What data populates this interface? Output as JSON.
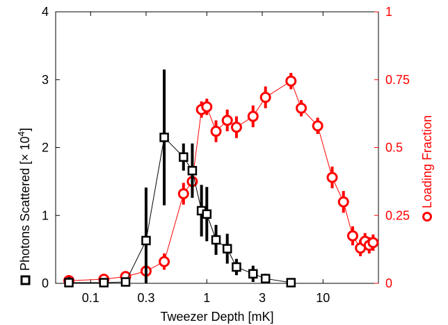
{
  "chart_data": {
    "type": "scatter",
    "xlabel": "Tweezer Depth [mK]",
    "x_scale": "log",
    "xlim": [
      0.05,
      30
    ],
    "x_ticks": [
      {
        "value": 0.1,
        "label": "0.1"
      },
      {
        "value": 0.3,
        "label": "0.3"
      },
      {
        "value": 1,
        "label": "1"
      },
      {
        "value": 3,
        "label": "3"
      },
      {
        "value": 10,
        "label": "10"
      }
    ],
    "left_axis": {
      "label_prefix": "Photons Scattered [",
      "label_mult": "× 10",
      "label_exp": "4",
      "label_suffix": "]",
      "ylim": [
        0,
        4
      ],
      "ticks": [
        {
          "value": 0,
          "label": "0"
        },
        {
          "value": 1,
          "label": "1"
        },
        {
          "value": 2,
          "label": "2"
        },
        {
          "value": 3,
          "label": "3"
        },
        {
          "value": 4,
          "label": "4"
        }
      ],
      "color": "#000000"
    },
    "right_axis": {
      "label": "Loading Fraction",
      "ylim": [
        0,
        1
      ],
      "ticks": [
        {
          "value": 0,
          "label": "0"
        },
        {
          "value": 0.25,
          "label": "0.25"
        },
        {
          "value": 0.5,
          "label": "0.5"
        },
        {
          "value": 0.75,
          "label": "0.75"
        },
        {
          "value": 1,
          "label": "1"
        }
      ],
      "color": "#ff0000"
    },
    "grid": false,
    "series": [
      {
        "axis": "left",
        "marker": "square",
        "color": "#000000",
        "points": [
          {
            "x": 0.065,
            "y": 0.01,
            "err": 0.08
          },
          {
            "x": 0.13,
            "y": 0.01,
            "err": 0.05
          },
          {
            "x": 0.2,
            "y": 0.02,
            "err": 0.05
          },
          {
            "x": 0.3,
            "y": 0.63,
            "err": 0.78
          },
          {
            "x": 0.43,
            "y": 2.15,
            "err": 1.0
          },
          {
            "x": 0.63,
            "y": 1.86,
            "err": 0.2
          },
          {
            "x": 0.75,
            "y": 1.66,
            "err": 0.4
          },
          {
            "x": 0.9,
            "y": 1.07,
            "err": 0.38
          },
          {
            "x": 1.0,
            "y": 1.02,
            "err": 0.4
          },
          {
            "x": 1.2,
            "y": 0.64,
            "err": 0.22
          },
          {
            "x": 1.5,
            "y": 0.51,
            "err": 0.22
          },
          {
            "x": 1.8,
            "y": 0.24,
            "err": 0.12
          },
          {
            "x": 2.5,
            "y": 0.14,
            "err": 0.12
          },
          {
            "x": 3.2,
            "y": 0.07,
            "err": 0.07
          },
          {
            "x": 5.3,
            "y": 0.01,
            "err": 0.05
          }
        ]
      },
      {
        "axis": "right",
        "marker": "circle",
        "color": "#ff0000",
        "points": [
          {
            "x": 0.065,
            "y": 0.01,
            "err": 0.02
          },
          {
            "x": 0.13,
            "y": 0.015,
            "err": 0.015
          },
          {
            "x": 0.2,
            "y": 0.025,
            "err": 0.02
          },
          {
            "x": 0.3,
            "y": 0.045,
            "err": 0.03
          },
          {
            "x": 0.43,
            "y": 0.08,
            "err": 0.03
          },
          {
            "x": 0.63,
            "y": 0.33,
            "err": 0.04
          },
          {
            "x": 0.75,
            "y": 0.375,
            "err": 0.04
          },
          {
            "x": 0.9,
            "y": 0.64,
            "err": 0.03
          },
          {
            "x": 1.0,
            "y": 0.65,
            "err": 0.03
          },
          {
            "x": 1.2,
            "y": 0.56,
            "err": 0.04
          },
          {
            "x": 1.5,
            "y": 0.6,
            "err": 0.04
          },
          {
            "x": 1.8,
            "y": 0.575,
            "err": 0.04
          },
          {
            "x": 2.5,
            "y": 0.615,
            "err": 0.04
          },
          {
            "x": 3.2,
            "y": 0.685,
            "err": 0.04
          },
          {
            "x": 5.3,
            "y": 0.745,
            "err": 0.03
          },
          {
            "x": 6.5,
            "y": 0.645,
            "err": 0.03
          },
          {
            "x": 9.0,
            "y": 0.58,
            "err": 0.03
          },
          {
            "x": 12.0,
            "y": 0.39,
            "err": 0.04
          },
          {
            "x": 15.0,
            "y": 0.3,
            "err": 0.04
          },
          {
            "x": 18.0,
            "y": 0.175,
            "err": 0.035
          },
          {
            "x": 21.0,
            "y": 0.13,
            "err": 0.03
          },
          {
            "x": 23.0,
            "y": 0.155,
            "err": 0.03
          },
          {
            "x": 25.0,
            "y": 0.14,
            "err": 0.03
          },
          {
            "x": 27.0,
            "y": 0.15,
            "err": 0.03
          }
        ]
      }
    ]
  }
}
